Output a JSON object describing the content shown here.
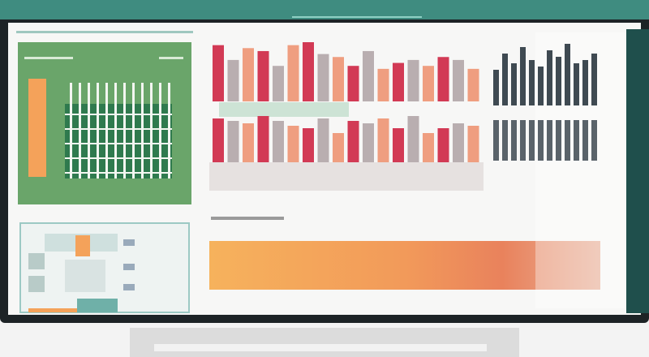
{
  "main_chart": {
    "type": "bar",
    "top_values": [
      95,
      70,
      90,
      85,
      60,
      95,
      100,
      80,
      75,
      60,
      85,
      55,
      65,
      70,
      60,
      75,
      70,
      55
    ],
    "bottom_values": [
      90,
      85,
      80,
      95,
      85,
      75,
      70,
      90,
      60,
      85,
      80,
      90,
      70,
      95,
      60,
      70,
      80,
      75
    ],
    "colors": [
      "#d23a55",
      "#b9aeb0",
      "#ef9e80"
    ],
    "ylim": [
      0,
      100
    ]
  },
  "side_chart": {
    "type": "bar",
    "values": [
      55,
      80,
      65,
      90,
      70,
      60,
      85,
      75,
      95,
      65,
      70,
      80
    ],
    "color": "#3f4a52",
    "ylim": [
      0,
      100
    ]
  }
}
